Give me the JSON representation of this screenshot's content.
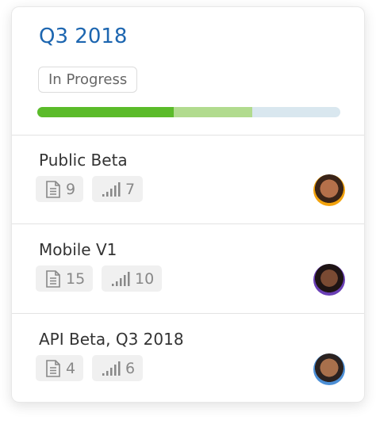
{
  "header": {
    "title": "Q3 2018",
    "status": "In Progress",
    "progress": {
      "done": 45,
      "in_progress": 26
    }
  },
  "items": [
    {
      "name": "Public Beta",
      "documents": 9,
      "stats": 7
    },
    {
      "name": "Mobile V1",
      "documents": 15,
      "stats": 10
    },
    {
      "name": "API Beta, Q3 2018",
      "documents": 4,
      "stats": 6
    }
  ]
}
